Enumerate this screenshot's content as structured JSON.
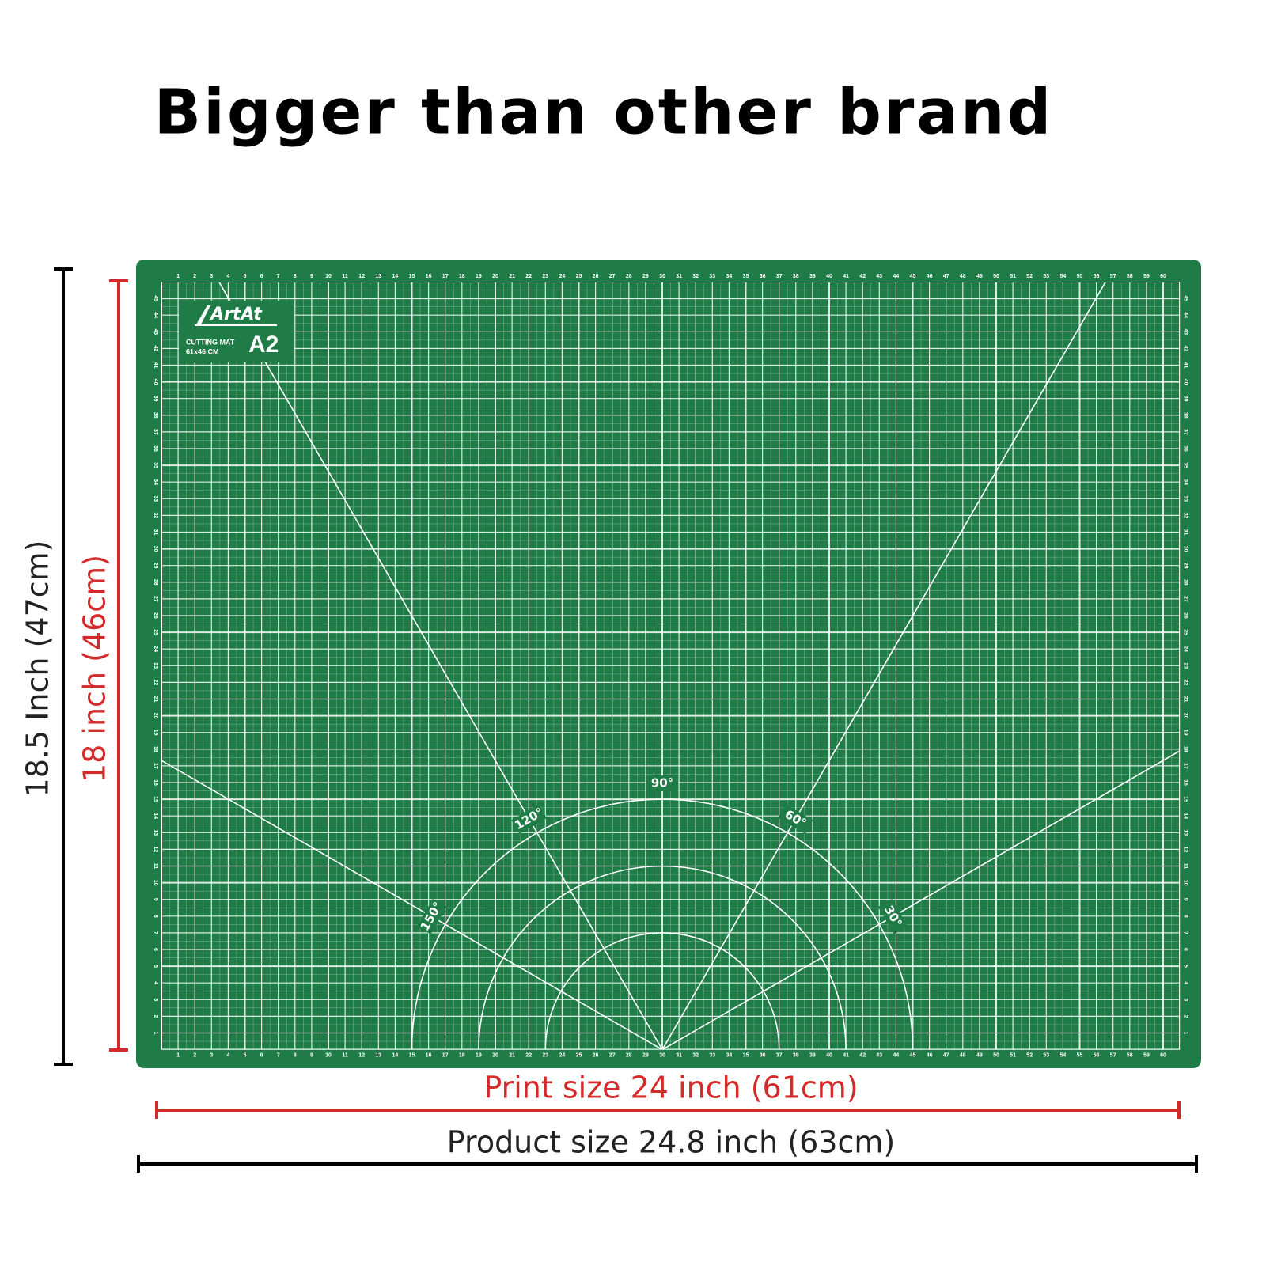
{
  "header": {
    "title": "Bigger than other brand"
  },
  "dimensions": {
    "product_height": "18.5 Inch (47cm)",
    "print_height": "18 inch (46cm)",
    "print_width": "Print size 24 inch (61cm)",
    "product_width": "Product size 24.8 inch (63cm)"
  },
  "mat": {
    "brand": "ArtAt",
    "product": "CUTTING MAT",
    "size": "61x46 CM",
    "model": "A2",
    "angle_labels": [
      {
        "value": 150,
        "label": "150°"
      },
      {
        "value": 120,
        "label": "120°"
      },
      {
        "value": 90,
        "label": "90°"
      },
      {
        "value": 60,
        "label": "60°"
      },
      {
        "value": 30,
        "label": "30°"
      }
    ],
    "ruler": {
      "horizontal": [
        1,
        2,
        3,
        4,
        5,
        6,
        7,
        8,
        9,
        10,
        11,
        12,
        13,
        14,
        15,
        16,
        17,
        18,
        19,
        20,
        21,
        22,
        23,
        24,
        25,
        26,
        27,
        28,
        29,
        30,
        31,
        32,
        33,
        34,
        35,
        36,
        37,
        38,
        39,
        40,
        41,
        42,
        43,
        44,
        45,
        46,
        47,
        48,
        49,
        50,
        51,
        52,
        53,
        54,
        55,
        56,
        57,
        58,
        59,
        60
      ],
      "vertical": [
        1,
        2,
        3,
        4,
        5,
        6,
        7,
        8,
        9,
        10,
        11,
        12,
        13,
        14,
        15,
        16,
        17,
        18,
        19,
        20,
        21,
        22,
        23,
        24,
        25,
        26,
        27,
        28,
        29,
        30,
        31,
        32,
        33,
        34,
        35,
        36,
        37,
        38,
        39,
        40,
        41,
        42,
        43,
        44,
        45
      ]
    }
  }
}
